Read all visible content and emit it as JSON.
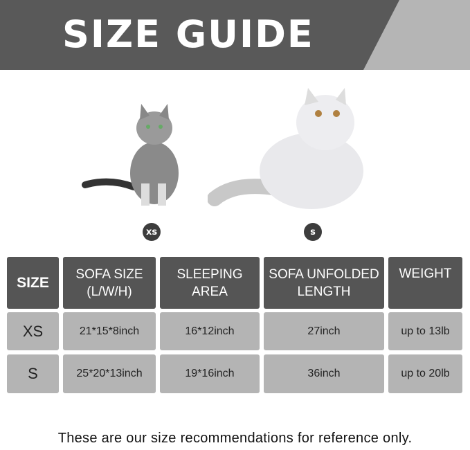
{
  "banner": {
    "title": "SIZE GUIDE"
  },
  "cats": [
    {
      "badge": "xs"
    },
    {
      "badge": "s"
    }
  ],
  "table": {
    "headers": [
      "SIZE",
      "SOFA SIZE (L/W/H)",
      "SLEEPING AREA",
      "SOFA UNFOLDED LENGTH",
      "WEIGHT"
    ],
    "rows": [
      [
        "XS",
        "21*15*8inch",
        "16*12inch",
        "27inch",
        "up to 13lb"
      ],
      [
        "S",
        "25*20*13inch",
        "19*16inch",
        "36inch",
        "up to 20lb"
      ]
    ]
  },
  "footer": "These are our size recommendations for reference only.",
  "colors": {
    "header": "#555555",
    "cell": "#b4b4b4",
    "banner": "#595959",
    "banner_accent": "#b5b5b5"
  }
}
